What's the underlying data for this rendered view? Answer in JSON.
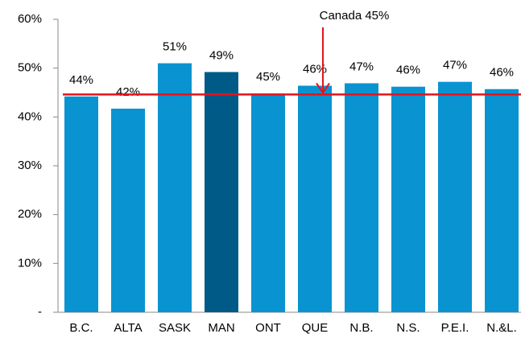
{
  "chart_data": {
    "type": "bar",
    "categories": [
      "B.C.",
      "ALTA",
      "SASK",
      "MAN",
      "ONT",
      "QUE",
      "N.B.",
      "N.S.",
      "P.E.I.",
      "N.&L."
    ],
    "values": [
      44.2,
      41.7,
      51,
      49.2,
      44.8,
      46.4,
      46.9,
      46.2,
      47.2,
      45.7
    ],
    "value_labels": [
      "44%",
      "42%",
      "51%",
      "49%",
      "45%",
      "46%",
      "47%",
      "46%",
      "47%",
      "46%"
    ],
    "colors": [
      "#0a93d1",
      "#0a93d1",
      "#0a93d1",
      "#005a87",
      "#0a93d1",
      "#0a93d1",
      "#0a93d1",
      "#0a93d1",
      "#0a93d1",
      "#0a93d1"
    ],
    "ylim": [
      0,
      60
    ],
    "yticks": [
      {
        "value": 0,
        "label": "-"
      },
      {
        "value": 10,
        "label": "10%"
      },
      {
        "value": 20,
        "label": "20%"
      },
      {
        "value": 30,
        "label": "30%"
      },
      {
        "value": 40,
        "label": "40%"
      },
      {
        "value": 50,
        "label": "50%"
      },
      {
        "value": 60,
        "label": "60%"
      }
    ],
    "reference_line": {
      "value": 44.6,
      "label": "Canada 45%",
      "color": "#e8121a"
    }
  }
}
